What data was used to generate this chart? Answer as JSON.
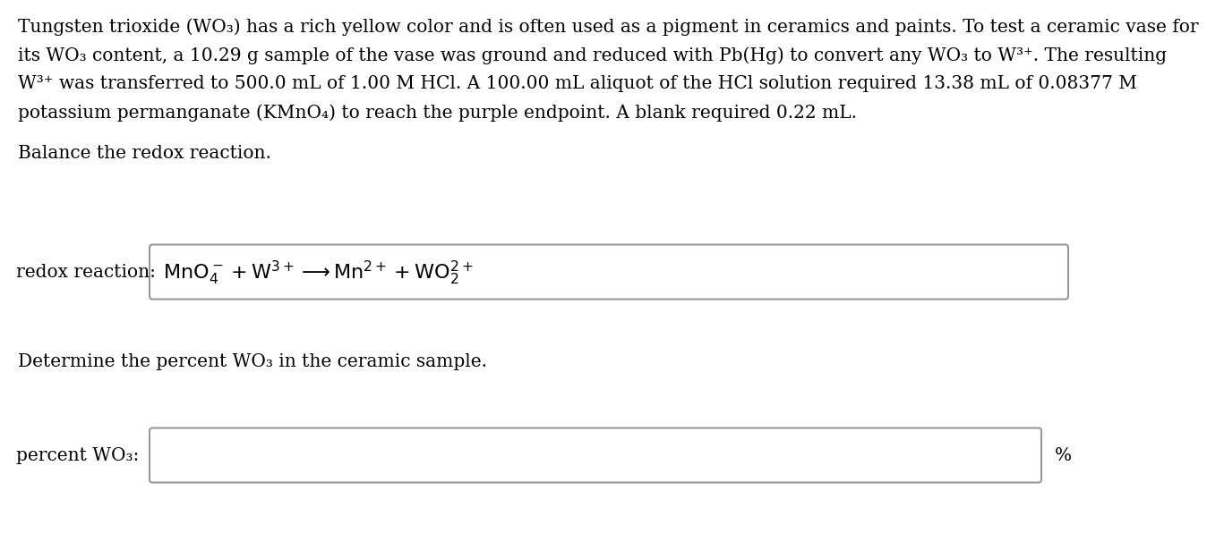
{
  "background_color": "#ffffff",
  "text_color": "#000000",
  "box_edge_color": "#999999",
  "box_face_color": "#ffffff",
  "line1": "Tungsten trioxide (WO₃) has a rich yellow color and is often used as a pigment in ceramics and paints. To test a ceramic vase for",
  "line2": "its WO₃ content, a 10.29 g sample of the vase was ground and reduced with Pb(Hg) to convert any WO₃ to W³⁺. The resulting",
  "line3": "W³⁺ was transferred to 500.0 mL of 1.00 M HCl. A 100.00 mL aliquot of the HCl solution required 13.38 mL of 0.08377 M",
  "line4": "potassium permanganate (KMnO₄) to reach the purple endpoint. A blank required 0.22 mL.",
  "balance_text": "Balance the redox reaction.",
  "redox_label": "redox reaction:",
  "determine_text": "Determine the percent WO₃ in the ceramic sample.",
  "percent_label": "percent WO₃:",
  "percent_suffix": "%",
  "font_size_body": 14.5,
  "font_size_label": 14.5,
  "font_size_eq": 16.0
}
